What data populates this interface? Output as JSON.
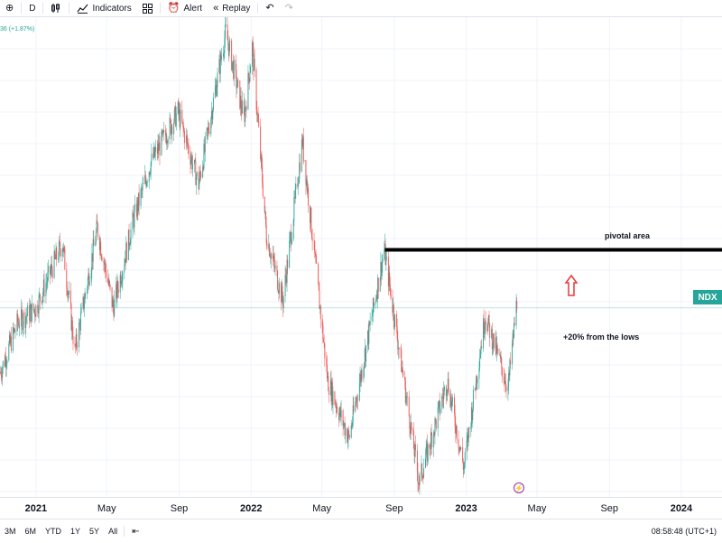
{
  "toolbar": {
    "items": [
      {
        "icon": "add-symbol-icon",
        "label": ""
      },
      {
        "icon": "",
        "label": "D"
      },
      {
        "icon": "candles-icon",
        "label": ""
      },
      {
        "icon": "indicators-icon",
        "label": "Indicators"
      },
      {
        "icon": "templates-icon",
        "label": ""
      },
      {
        "icon": "alert-icon",
        "label": "Alert"
      },
      {
        "icon": "replay-icon",
        "label": "Replay"
      },
      {
        "icon": "undo-icon",
        "label": ""
      },
      {
        "icon": "redo-icon",
        "label": ""
      }
    ]
  },
  "price_readout": "36 (+1.87%)",
  "annotations": {
    "pivotal": "pivotal area",
    "lows": "+20% from the lows"
  },
  "symbol_label": "NDX",
  "colors": {
    "up": "#26a69a",
    "down": "#ef5350",
    "pivot_line": "#000000",
    "arrow": "#e53935",
    "grid": "#f0f3fa",
    "current_price_line": "#26a69a"
  },
  "chart_data": {
    "type": "candlestick",
    "symbol": "NDX",
    "interval": "D",
    "x_ticks": [
      "2021",
      "May",
      "Sep",
      "2022",
      "May",
      "Sep",
      "2023",
      "May",
      "Sep",
      "2024"
    ],
    "ylim": [
      10300,
      16900
    ],
    "series": [
      {
        "values": [
          [
            "2020-11-01",
            12000
          ],
          [
            "2020-12-01",
            12700
          ],
          [
            "2021-01-01",
            12900
          ],
          [
            "2021-02-15",
            13800
          ],
          [
            "2021-03-08",
            12300
          ],
          [
            "2021-04-15",
            14000
          ],
          [
            "2021-05-12",
            12900
          ],
          [
            "2021-06-15",
            14100
          ],
          [
            "2021-07-15",
            14900
          ],
          [
            "2021-08-30",
            15600
          ],
          [
            "2021-10-04",
            14600
          ],
          [
            "2021-11-19",
            16700
          ],
          [
            "2021-12-20",
            15500
          ],
          [
            "2022-01-03",
            16500
          ],
          [
            "2022-01-27",
            13900
          ],
          [
            "2022-02-24",
            13000
          ],
          [
            "2022-03-29",
            15200
          ],
          [
            "2022-05-11",
            11900
          ],
          [
            "2022-06-16",
            11100
          ],
          [
            "2022-08-15",
            13700
          ],
          [
            "2022-10-13",
            10500
          ],
          [
            "2022-11-30",
            11900
          ],
          [
            "2022-12-28",
            10700
          ],
          [
            "2023-02-02",
            12800
          ],
          [
            "2023-03-13",
            11800
          ],
          [
            "2023-03-28",
            13000
          ]
        ]
      }
    ],
    "horizontal_lines": [
      {
        "label": "pivotal area",
        "y": 13700,
        "x_start": "2022-08-16"
      }
    ],
    "current_price": 12900
  },
  "time_axis": [
    "2021",
    "May",
    "Sep",
    "2022",
    "May",
    "Sep",
    "2023",
    "May",
    "Sep",
    "2024"
  ],
  "bottombar": {
    "ranges": [
      "3M",
      "6M",
      "YTD",
      "1Y",
      "5Y",
      "All"
    ],
    "time": "08:58:48 (UTC+1)"
  }
}
